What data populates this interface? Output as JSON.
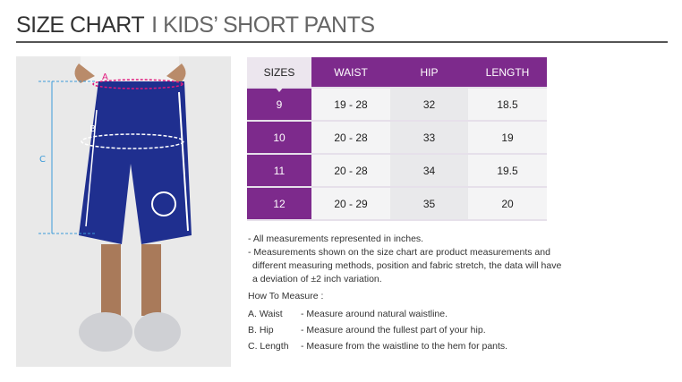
{
  "header": {
    "title": "SIZE CHART",
    "subtitle": "I KIDS’ SHORT PANTS"
  },
  "diagram": {
    "labels": {
      "a": "A",
      "b": "B",
      "c": "C"
    }
  },
  "table": {
    "headers": [
      "SIZES",
      "WAIST",
      "HIP",
      "LENGTH"
    ],
    "rows": [
      {
        "size": "9",
        "waist": "19 - 28",
        "hip": "32",
        "length": "18.5"
      },
      {
        "size": "10",
        "waist": "20 - 28",
        "hip": "33",
        "length": "19"
      },
      {
        "size": "11",
        "waist": "20 - 28",
        "hip": "34",
        "length": "19.5"
      },
      {
        "size": "12",
        "waist": "20 - 29",
        "hip": "35",
        "length": "20"
      }
    ]
  },
  "notes": [
    "- All measurements represented in inches.",
    "- Measurements shown on the size chart are product measurements and",
    "different measuring methods, position and fabric stretch, the data will have",
    "a deviation of ±2 inch variation."
  ],
  "how_to": {
    "title": "How To Measure :",
    "items": [
      {
        "key": "A. Waist",
        "desc": "- Measure around natural waistline."
      },
      {
        "key": "B. Hip",
        "desc": "- Measure around the fullest part of your hip."
      },
      {
        "key": "C. Length",
        "desc": "- Measure from the waistline to the hem for pants."
      }
    ]
  },
  "colors": {
    "accent": "#7d2a8c",
    "shorts": "#1f2f8f",
    "measure_line": "#3a9ad9",
    "waist_line": "#e0197d"
  }
}
